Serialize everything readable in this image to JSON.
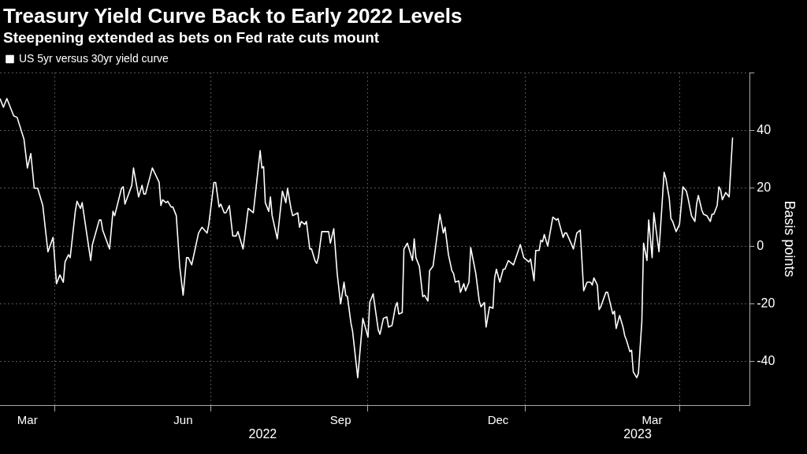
{
  "chart_data": {
    "type": "line",
    "title": "Treasury Yield Curve Back to Early 2022 Levels",
    "subtitle": "Steepening extended as bets on Fed rate cuts mount",
    "ylabel": "Basis points",
    "x": [
      "2022-02-28",
      "2022-03-02",
      "2022-03-04",
      "2022-03-08",
      "2022-03-10",
      "2022-03-14",
      "2022-03-16",
      "2022-03-18",
      "2022-03-20",
      "2022-03-22",
      "2022-03-25",
      "2022-03-28",
      "2022-03-31",
      "2022-04-02",
      "2022-04-04",
      "2022-04-06",
      "2022-04-07",
      "2022-04-09",
      "2022-04-10",
      "2022-04-13",
      "2022-04-14",
      "2022-04-16",
      "2022-04-17",
      "2022-04-22",
      "2022-04-23",
      "2022-04-27",
      "2022-04-28",
      "2022-04-29",
      "2022-05-03",
      "2022-05-05",
      "2022-05-06",
      "2022-05-10",
      "2022-05-11",
      "2022-05-12",
      "2022-05-16",
      "2022-05-17",
      "2022-05-20",
      "2022-05-22",
      "2022-05-23",
      "2022-05-24",
      "2022-05-28",
      "2022-06-01",
      "2022-06-02",
      "2022-06-03",
      "2022-06-05",
      "2022-06-06",
      "2022-06-08",
      "2022-06-09",
      "2022-06-11",
      "2022-06-13",
      "2022-06-15",
      "2022-06-17",
      "2022-06-18",
      "2022-06-20",
      "2022-06-24",
      "2022-06-26",
      "2022-06-29",
      "2022-06-30",
      "2022-07-03",
      "2022-07-04",
      "2022-07-06",
      "2022-07-07",
      "2022-07-09",
      "2022-07-10",
      "2022-07-12",
      "2022-07-14",
      "2022-07-16",
      "2022-07-17",
      "2022-07-20",
      "2022-07-23",
      "2022-07-26",
      "2022-07-30",
      "2022-07-31",
      "2022-08-01",
      "2022-08-02",
      "2022-08-04",
      "2022-08-05",
      "2022-08-06",
      "2022-08-09",
      "2022-08-12",
      "2022-08-14",
      "2022-08-15",
      "2022-08-17",
      "2022-08-18",
      "2022-08-21",
      "2022-08-22",
      "2022-08-23",
      "2022-08-25",
      "2022-08-26",
      "2022-08-28",
      "2022-08-29",
      "2022-08-31",
      "2022-09-01",
      "2022-09-02",
      "2022-09-04",
      "2022-09-08",
      "2022-09-09",
      "2022-09-11",
      "2022-09-13",
      "2022-09-15",
      "2022-09-17",
      "2022-09-18",
      "2022-09-19",
      "2022-09-21",
      "2022-09-22",
      "2022-09-25",
      "2022-09-28",
      "2022-10-01",
      "2022-10-02",
      "2022-10-04",
      "2022-10-07",
      "2022-10-08",
      "2022-10-10",
      "2022-10-12",
      "2022-10-13",
      "2022-10-15",
      "2022-10-17",
      "2022-10-18",
      "2022-10-19",
      "2022-10-21",
      "2022-10-22",
      "2022-10-24",
      "2022-10-25",
      "2022-10-27",
      "2022-10-28",
      "2022-10-29",
      "2022-10-31",
      "2022-11-02",
      "2022-11-03",
      "2022-11-05",
      "2022-11-06",
      "2022-11-08",
      "2022-11-12",
      "2022-11-14",
      "2022-11-15",
      "2022-11-17",
      "2022-11-19",
      "2022-11-20",
      "2022-11-21",
      "2022-11-23",
      "2022-11-24",
      "2022-11-26",
      "2022-11-27",
      "2022-11-29",
      "2022-11-30",
      "2022-12-03",
      "2022-12-05",
      "2022-12-06",
      "2022-12-08",
      "2022-12-09",
      "2022-12-11",
      "2022-12-13",
      "2022-12-14",
      "2022-12-15",
      "2022-12-17",
      "2022-12-19",
      "2022-12-20",
      "2022-12-22",
      "2022-12-25",
      "2022-12-29",
      "2022-12-31",
      "2023-01-01",
      "2023-01-03",
      "2023-01-04",
      "2023-01-06",
      "2023-01-07",
      "2023-01-09",
      "2023-01-10",
      "2023-01-11",
      "2023-01-12",
      "2023-01-14",
      "2023-01-17",
      "2023-01-19",
      "2023-01-20",
      "2023-01-23",
      "2023-01-24",
      "2023-01-25",
      "2023-01-28",
      "2023-01-29",
      "2023-01-31",
      "2023-02-02",
      "2023-02-04",
      "2023-02-06",
      "2023-02-08",
      "2023-02-09",
      "2023-02-10",
      "2023-02-12",
      "2023-02-13",
      "2023-02-14",
      "2023-02-17",
      "2023-02-18",
      "2023-02-21",
      "2023-02-22",
      "2023-02-23",
      "2023-02-25",
      "2023-02-27",
      "2023-02-28",
      "2023-03-01",
      "2023-03-03",
      "2023-03-04",
      "2023-03-05",
      "2023-03-07",
      "2023-03-08",
      "2023-03-10",
      "2023-03-11",
      "2023-03-13",
      "2023-03-14",
      "2023-03-16",
      "2023-03-17",
      "2023-03-18",
      "2023-03-20",
      "2023-03-23",
      "2023-03-24",
      "2023-03-26",
      "2023-03-27",
      "2023-03-28",
      "2023-03-30",
      "2023-04-01",
      "2023-04-03",
      "2023-04-05",
      "2023-04-06",
      "2023-04-08",
      "2023-04-10",
      "2023-04-11",
      "2023-04-12",
      "2023-04-14",
      "2023-04-15",
      "2023-04-17",
      "2023-04-19",
      "2023-04-20",
      "2023-04-21",
      "2023-04-23",
      "2023-04-24",
      "2023-04-25",
      "2023-04-26",
      "2023-04-28",
      "2023-04-30",
      "2023-05-02"
    ],
    "series": [
      {
        "name": "US 5yr versus 30yr yield curve",
        "color": "#ffffff",
        "values": [
          51,
          48,
          51,
          45,
          44.5,
          37,
          27,
          32,
          20,
          20,
          14,
          -2,
          3,
          -13,
          -10,
          -12.5,
          -5.5,
          -3,
          -4,
          12,
          15.5,
          13,
          15,
          -5,
          0.5,
          9,
          9,
          5.5,
          -1,
          12,
          10.5,
          20,
          20.5,
          14.5,
          21,
          27,
          17,
          21,
          18,
          18,
          27,
          22,
          14,
          16,
          15,
          15.5,
          13.5,
          13.5,
          10.5,
          -7,
          -17,
          -4,
          -4,
          -6.5,
          4.5,
          6.5,
          4.5,
          7.5,
          22,
          22,
          13.5,
          14.5,
          11.5,
          11.5,
          14,
          3.5,
          3.5,
          5,
          -1,
          13,
          11.5,
          33,
          27,
          27.5,
          15,
          12,
          17,
          10.5,
          2.5,
          19,
          15,
          20,
          13,
          10.5,
          11.5,
          6.5,
          8.5,
          7.5,
          8.5,
          -1,
          -1,
          -5,
          -6,
          -4,
          5,
          5,
          1,
          6,
          -9.5,
          -20,
          -12.5,
          -17,
          -17.5,
          -26.5,
          -29.5,
          -45.5,
          -25,
          -31.5,
          -19.5,
          -16.5,
          -29,
          -30.5,
          -25,
          -24.5,
          -28,
          -27.5,
          -21,
          -19.5,
          -23.5,
          -23,
          -1,
          1,
          -1,
          -5,
          2.5,
          -4,
          -7,
          -17.5,
          -17,
          -19,
          -8.5,
          -7,
          11,
          4.5,
          6.5,
          -3,
          -8.5,
          -9.5,
          -12.5,
          -12,
          -16,
          -13,
          -15.5,
          -12.5,
          -0.5,
          -9.5,
          -19,
          -21,
          -19.5,
          -28,
          -21,
          -21.5,
          -11,
          -8,
          -12.5,
          -8,
          -8,
          -5,
          -6.5,
          0.5,
          -4,
          -4.5,
          -5.5,
          -4.5,
          -12,
          -1.5,
          -1.5,
          2,
          1.5,
          4,
          0,
          10,
          9,
          9.5,
          3,
          4.5,
          4.5,
          0.5,
          -1,
          4.5,
          5.5,
          -15.5,
          -12.5,
          -12.5,
          -13.5,
          -11,
          -13.5,
          -22,
          -21,
          -16,
          -16,
          -23.5,
          -22.5,
          -28.5,
          -24,
          -28,
          -31,
          -32.5,
          -36.5,
          -36,
          -43.5,
          -45.5,
          -44,
          -26,
          1,
          -5,
          9,
          -4,
          11.5,
          7,
          -2,
          25.5,
          23.5,
          16.5,
          9.5,
          8.5,
          5,
          7.5,
          20.5,
          19,
          16.5,
          10.5,
          8.5,
          14.5,
          17.5,
          12.5,
          11,
          10.5,
          8.5,
          11,
          11,
          14,
          20.5,
          19.5,
          16,
          18.5,
          17,
          37.5
        ]
      }
    ],
    "xlim": [
      "2022-02-28",
      "2023-05-12"
    ],
    "xticks": [
      {
        "value": "2022-03-16",
        "label": "Mar"
      },
      {
        "value": "2022-04-01",
        "label": null
      },
      {
        "value": "2022-06-15",
        "label": "Jun"
      },
      {
        "value": "2022-07-01",
        "label": null
      },
      {
        "value": "2022-09-15",
        "label": "Sep"
      },
      {
        "value": "2022-10-01",
        "label": null
      },
      {
        "value": "2022-12-16",
        "label": "Dec"
      },
      {
        "value": "2023-01-01",
        "label": null
      },
      {
        "value": "2023-03-16",
        "label": "Mar"
      },
      {
        "value": "2023-04-01",
        "label": null
      }
    ],
    "ylim": [
      -55,
      60
    ],
    "yticks": [
      -40,
      -20,
      0,
      20,
      40,
      {
        "value": 60,
        "label": null
      }
    ],
    "grid": true,
    "legend": "top left",
    "marker": "none",
    "line_style": "solid",
    "annotations": [
      "2022",
      "2023"
    ]
  }
}
